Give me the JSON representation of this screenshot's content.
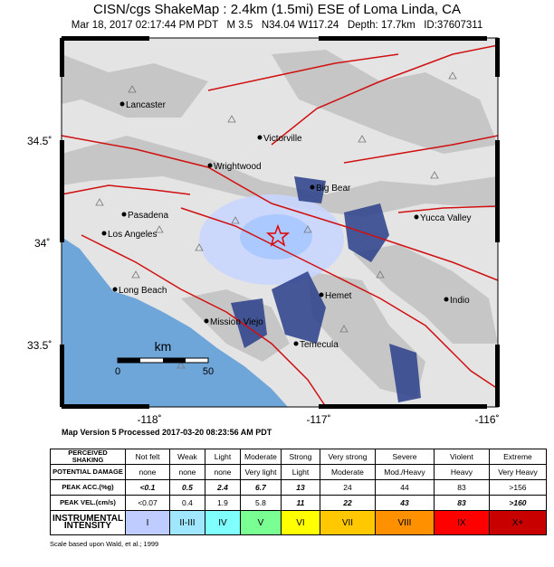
{
  "header": {
    "title": "CISN/cgs ShakeMap : 2.4km (1.5mi) ESE of Loma Linda, CA",
    "subtitle": "Mar 18, 2017 02:17:44 PM PDT   M 3.5   N34.04 W117.24   Depth: 17.7km   ID:37607311"
  },
  "map": {
    "lat_labels": [
      "34.5˚",
      "34˚",
      "33.5˚"
    ],
    "lon_labels": [
      "-118˚",
      "-117˚",
      "-116˚"
    ],
    "cities": [
      "Lancaster",
      "Victorville",
      "Wrightwood",
      "Big Bear",
      "Pasadena",
      "Yucca Valley",
      "Los Angeles",
      "Long Beach",
      "Hemet",
      "Indio",
      "Mission Viejo",
      "Temecula"
    ],
    "scale": {
      "unit": "km",
      "labels": [
        "0",
        "50"
      ]
    }
  },
  "map_version": "Map Version 5 Processed 2017-03-20 08:23:56 AM PDT",
  "table": {
    "rows": [
      [
        "PERCEIVED SHAKING",
        "Not felt",
        "Weak",
        "Light",
        "Moderate",
        "Strong",
        "Very strong",
        "Severe",
        "Violent",
        "Extreme"
      ],
      [
        "POTENTIAL DAMAGE",
        "none",
        "none",
        "none",
        "Very light",
        "Light",
        "Moderate",
        "Mod./Heavy",
        "Heavy",
        "Very Heavy"
      ],
      [
        "PEAK ACC.(%g)",
        "<0.1",
        "0.5",
        "2.4",
        "6.7",
        "13",
        "24",
        "44",
        "83",
        ">156"
      ],
      [
        "PEAK VEL.(cm/s)",
        "<0.07",
        "0.4",
        "1.9",
        "5.8",
        "11",
        "22",
        "43",
        "83",
        ">160"
      ],
      [
        "INSTRUMENTAL INTENSITY",
        "I",
        "II-III",
        "IV",
        "V",
        "VI",
        "VII",
        "VIII",
        "IX",
        "X+"
      ]
    ]
  },
  "footnote": "Scale based upon Wald, et al.; 1999"
}
